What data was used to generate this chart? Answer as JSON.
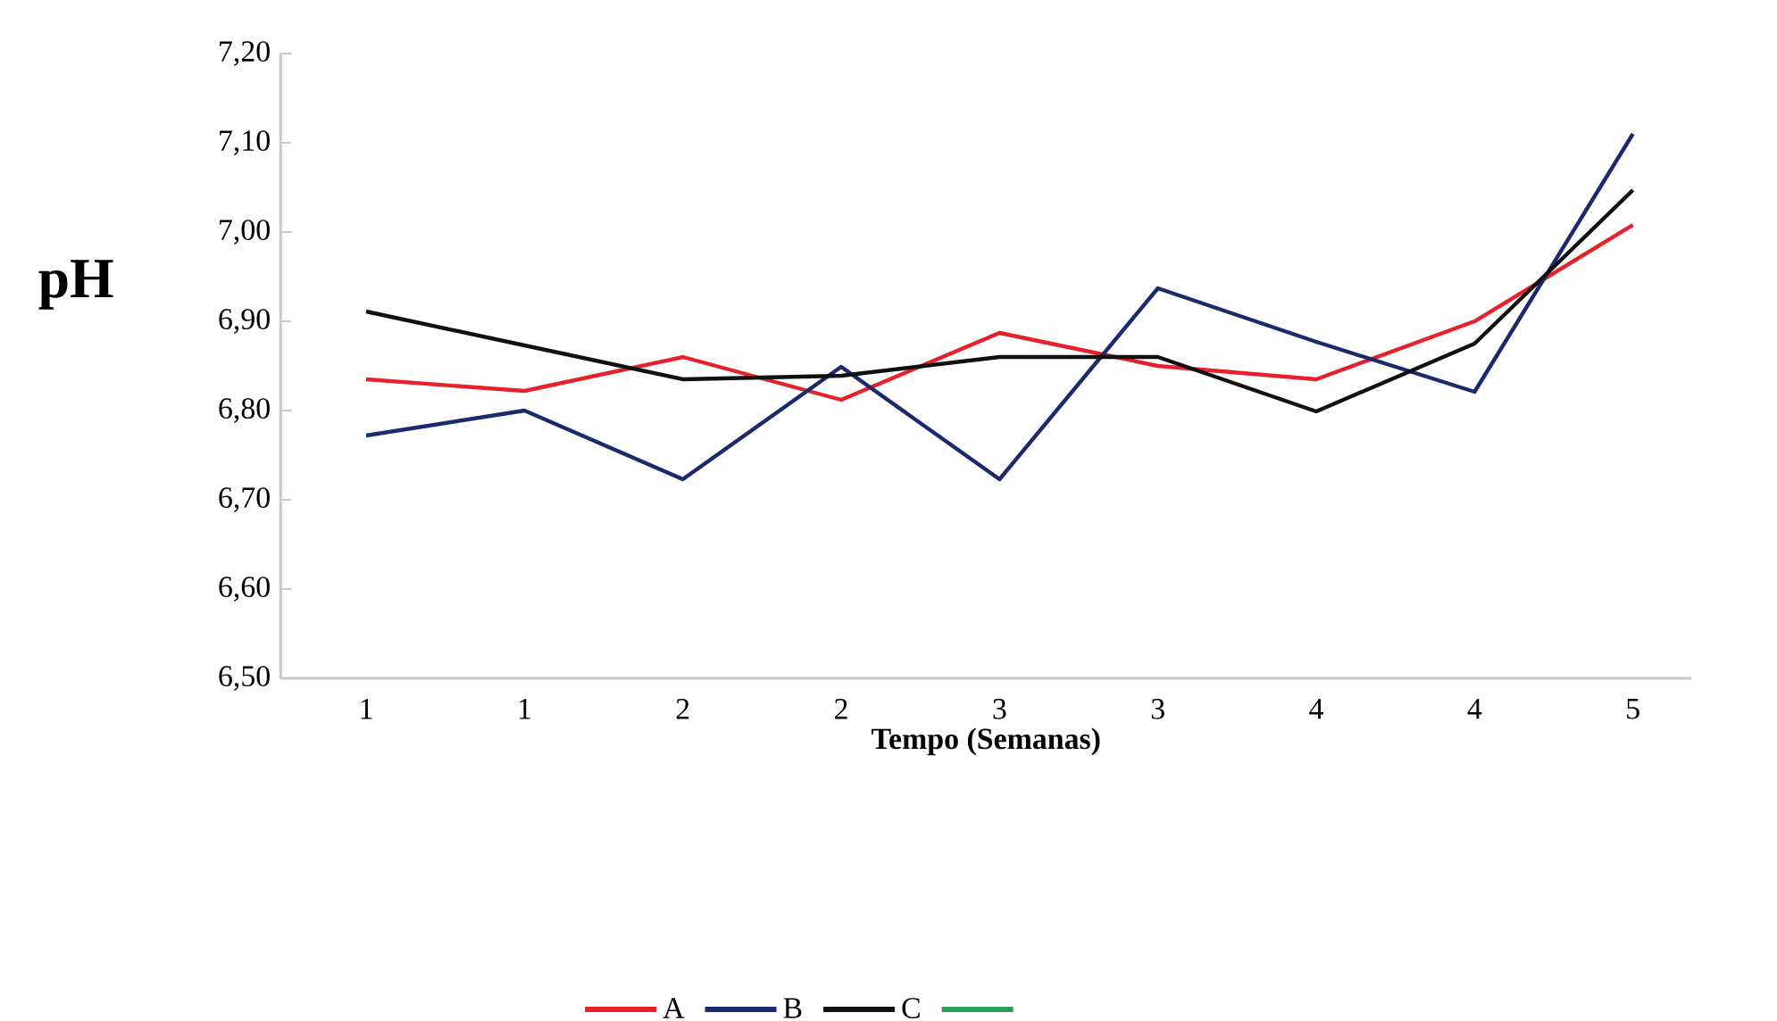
{
  "chart_data": {
    "type": "line",
    "xlabel": "Tempo (Semanas)",
    "ylabel": "pH",
    "categories": [
      "1",
      "1",
      "2",
      "2",
      "3",
      "3",
      "4",
      "4",
      "5"
    ],
    "ylim": [
      6.5,
      7.2
    ],
    "yticks": [
      {
        "value": 6.5,
        "label": "6,50"
      },
      {
        "value": 6.6,
        "label": "6,60"
      },
      {
        "value": 6.7,
        "label": "6,70"
      },
      {
        "value": 6.8,
        "label": "6,80"
      },
      {
        "value": 6.9,
        "label": "6,90"
      },
      {
        "value": 7.0,
        "label": "7,00"
      },
      {
        "value": 7.1,
        "label": "7,10"
      },
      {
        "value": 7.2,
        "label": "7,20"
      }
    ],
    "series": [
      {
        "name": "A",
        "color": "#e8202a",
        "values": [
          6.835,
          6.822,
          6.86,
          6.812,
          6.887,
          6.85,
          6.835,
          6.9,
          7.008
        ]
      },
      {
        "name": "B",
        "color": "#1a2a6c",
        "values": [
          6.772,
          6.8,
          6.723,
          6.849,
          6.723,
          6.937,
          6.877,
          6.821,
          7.11
        ]
      },
      {
        "name": "C",
        "color": "#111111",
        "values": [
          6.911,
          6.873,
          6.835,
          6.839,
          6.86,
          6.86,
          6.799,
          6.875,
          7.047
        ]
      },
      {
        "color": "#2e9e5b",
        "values": [
          null,
          null,
          null,
          null,
          null,
          null,
          null,
          null,
          null
        ]
      }
    ],
    "grid": false,
    "legend": "bottom",
    "marker": "none",
    "line_style": "solid"
  }
}
